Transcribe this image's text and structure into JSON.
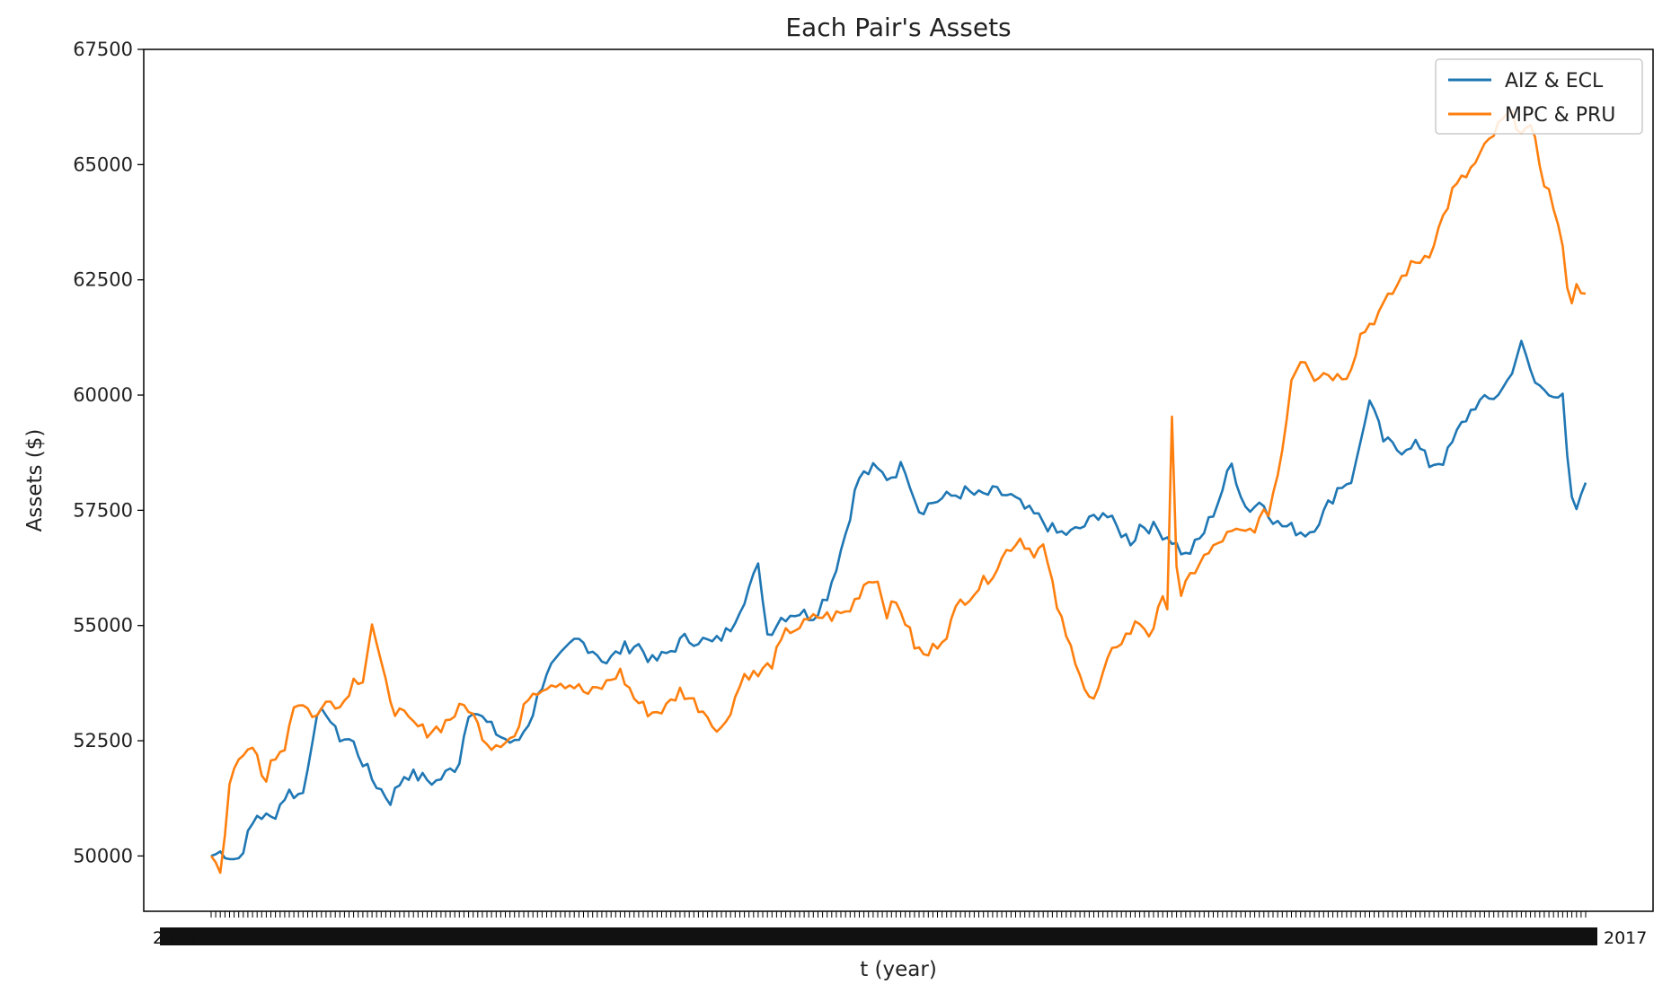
{
  "chart_data": {
    "type": "line",
    "title": "Each Pair's Assets",
    "xlabel": "t (year)",
    "ylabel": "Assets ($)",
    "ylim": [
      48800,
      67500
    ],
    "yticks": [
      50000,
      52500,
      55000,
      57500,
      60000,
      62500,
      65000,
      67500
    ],
    "ytick_labels": [
      "50000",
      "52500",
      "55000",
      "57500",
      "60000",
      "62500",
      "65000",
      "67500"
    ],
    "xtick_left_label": "2018",
    "xtick_right_label": "2017",
    "legend_position": "upper right",
    "n_points": 300,
    "series": [
      {
        "name": "AIZ & ECL",
        "color": "#1f77b4",
        "anchors": [
          [
            0,
            50000
          ],
          [
            3,
            50100
          ],
          [
            7,
            49900
          ],
          [
            12,
            50900
          ],
          [
            16,
            50800
          ],
          [
            20,
            51400
          ],
          [
            24,
            51300
          ],
          [
            27,
            52800
          ],
          [
            30,
            53200
          ],
          [
            33,
            52600
          ],
          [
            37,
            52500
          ],
          [
            42,
            51700
          ],
          [
            47,
            51200
          ],
          [
            51,
            51800
          ],
          [
            55,
            51700
          ],
          [
            59,
            51600
          ],
          [
            62,
            51800
          ],
          [
            65,
            52000
          ],
          [
            68,
            53300
          ],
          [
            72,
            52900
          ],
          [
            76,
            52600
          ],
          [
            80,
            52400
          ],
          [
            84,
            53000
          ],
          [
            88,
            54000
          ],
          [
            92,
            54300
          ],
          [
            96,
            54700
          ],
          [
            100,
            54500
          ],
          [
            104,
            54200
          ],
          [
            108,
            54500
          ],
          [
            112,
            54600
          ],
          [
            116,
            54200
          ],
          [
            120,
            54400
          ],
          [
            124,
            54700
          ],
          [
            128,
            54700
          ],
          [
            132,
            54600
          ],
          [
            136,
            54900
          ],
          [
            140,
            55600
          ],
          [
            144,
            56300
          ],
          [
            146,
            54800
          ],
          [
            150,
            55200
          ],
          [
            154,
            55300
          ],
          [
            158,
            55200
          ],
          [
            162,
            55700
          ],
          [
            166,
            56800
          ],
          [
            170,
            58200
          ],
          [
            174,
            58400
          ],
          [
            178,
            58200
          ],
          [
            182,
            58500
          ],
          [
            186,
            57500
          ],
          [
            190,
            57700
          ],
          [
            194,
            57800
          ],
          [
            198,
            57900
          ],
          [
            202,
            57800
          ],
          [
            206,
            57900
          ],
          [
            210,
            57800
          ],
          [
            214,
            57500
          ],
          [
            218,
            57300
          ],
          [
            222,
            57000
          ],
          [
            226,
            57000
          ],
          [
            230,
            57200
          ],
          [
            234,
            57500
          ],
          [
            238,
            57100
          ],
          [
            242,
            56800
          ],
          [
            244,
            57200
          ],
          [
            248,
            57100
          ],
          [
            252,
            56900
          ],
          [
            256,
            56500
          ],
          [
            260,
            56900
          ],
          [
            264,
            57600
          ],
          [
            268,
            58500
          ],
          [
            272,
            57500
          ],
          [
            276,
            57700
          ],
          [
            280,
            57200
          ],
          [
            284,
            57100
          ],
          [
            288,
            57000
          ],
          [
            292,
            57400
          ],
          [
            296,
            58000
          ],
          [
            300,
            58200
          ],
          [
            304,
            59900
          ],
          [
            308,
            59000
          ],
          [
            312,
            58800
          ],
          [
            316,
            59000
          ],
          [
            320,
            58500
          ],
          [
            324,
            58600
          ],
          [
            328,
            59300
          ],
          [
            332,
            59800
          ],
          [
            336,
            59900
          ],
          [
            340,
            60200
          ],
          [
            344,
            61100
          ],
          [
            348,
            60200
          ],
          [
            352,
            60100
          ],
          [
            355,
            59900
          ],
          [
            357,
            57700
          ],
          [
            359,
            57500
          ],
          [
            361,
            58100
          ]
        ]
      },
      {
        "name": "MPC & PRU",
        "color": "#ff7f0e",
        "anchors": [
          [
            0,
            50000
          ],
          [
            3,
            49700
          ],
          [
            5,
            51800
          ],
          [
            8,
            52300
          ],
          [
            11,
            52400
          ],
          [
            14,
            51400
          ],
          [
            16,
            52200
          ],
          [
            19,
            52300
          ],
          [
            22,
            53400
          ],
          [
            25,
            53200
          ],
          [
            28,
            53000
          ],
          [
            31,
            53500
          ],
          [
            34,
            53200
          ],
          [
            37,
            53800
          ],
          [
            40,
            53900
          ],
          [
            42,
            55100
          ],
          [
            45,
            53900
          ],
          [
            48,
            53200
          ],
          [
            52,
            52900
          ],
          [
            56,
            52700
          ],
          [
            60,
            52800
          ],
          [
            64,
            53100
          ],
          [
            67,
            53300
          ],
          [
            70,
            52800
          ],
          [
            73,
            52400
          ],
          [
            76,
            52500
          ],
          [
            80,
            52600
          ],
          [
            83,
            53500
          ],
          [
            87,
            53700
          ],
          [
            91,
            53800
          ],
          [
            95,
            53700
          ],
          [
            99,
            53500
          ],
          [
            103,
            53700
          ],
          [
            107,
            54000
          ],
          [
            111,
            53400
          ],
          [
            115,
            53100
          ],
          [
            119,
            53200
          ],
          [
            123,
            53600
          ],
          [
            127,
            53300
          ],
          [
            131,
            53000
          ],
          [
            133,
            52600
          ],
          [
            136,
            53200
          ],
          [
            140,
            54000
          ],
          [
            143,
            53900
          ],
          [
            147,
            54200
          ],
          [
            151,
            54900
          ],
          [
            155,
            55000
          ],
          [
            159,
            55200
          ],
          [
            163,
            55200
          ],
          [
            167,
            55300
          ],
          [
            171,
            55900
          ],
          [
            174,
            56100
          ],
          [
            177,
            55300
          ],
          [
            180,
            55500
          ],
          [
            184,
            54600
          ],
          [
            187,
            54300
          ],
          [
            190,
            54600
          ],
          [
            193,
            54900
          ],
          [
            196,
            55500
          ],
          [
            199,
            55700
          ],
          [
            202,
            55900
          ],
          [
            206,
            56300
          ],
          [
            209,
            56700
          ],
          [
            212,
            56900
          ],
          [
            215,
            56600
          ],
          [
            218,
            56700
          ],
          [
            221,
            55600
          ],
          [
            224,
            54700
          ],
          [
            227,
            54200
          ],
          [
            229,
            53600
          ],
          [
            231,
            53300
          ],
          [
            234,
            54000
          ],
          [
            237,
            54600
          ],
          [
            240,
            54800
          ],
          [
            243,
            55100
          ],
          [
            246,
            54800
          ],
          [
            249,
            55500
          ],
          [
            251,
            55500
          ],
          [
            252,
            61900
          ],
          [
            253,
            55300
          ],
          [
            256,
            56000
          ],
          [
            259,
            56400
          ],
          [
            262,
            56600
          ],
          [
            265,
            56900
          ],
          [
            268,
            57000
          ],
          [
            271,
            57000
          ],
          [
            274,
            57200
          ],
          [
            277,
            57500
          ],
          [
            280,
            58500
          ],
          [
            283,
            60400
          ],
          [
            286,
            60900
          ],
          [
            289,
            60400
          ],
          [
            292,
            60500
          ],
          [
            295,
            60400
          ],
          [
            298,
            60500
          ],
          [
            301,
            61300
          ],
          [
            304,
            61600
          ],
          [
            307,
            61900
          ],
          [
            310,
            62300
          ],
          [
            313,
            62700
          ],
          [
            316,
            62900
          ],
          [
            319,
            63100
          ],
          [
            322,
            63700
          ],
          [
            325,
            64400
          ],
          [
            328,
            64700
          ],
          [
            331,
            65000
          ],
          [
            334,
            65400
          ],
          [
            337,
            65800
          ],
          [
            340,
            66100
          ],
          [
            343,
            65800
          ],
          [
            346,
            65700
          ],
          [
            349,
            64700
          ],
          [
            352,
            64000
          ],
          [
            354,
            63100
          ],
          [
            356,
            62000
          ],
          [
            358,
            62400
          ],
          [
            360,
            62200
          ]
        ]
      }
    ]
  }
}
